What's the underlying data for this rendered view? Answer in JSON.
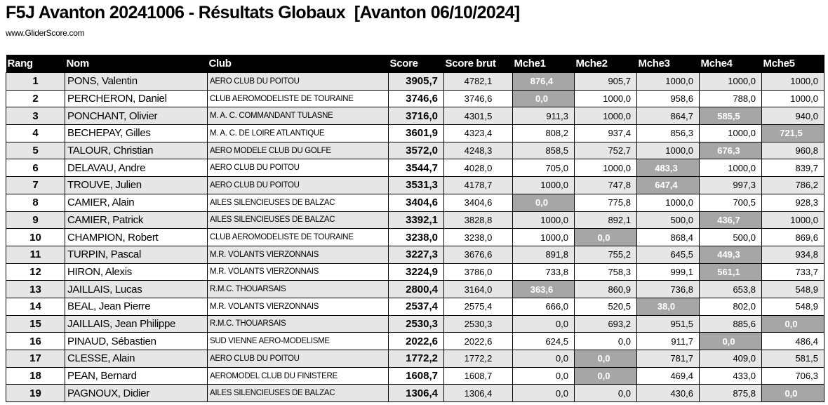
{
  "title": "F5J Avanton 20241006 - Résultats Globaux  [Avanton 06/10/2024]",
  "site": "www.GliderScore.com",
  "colors": {
    "header_bg": "#000000",
    "odd_row_bg": "#e6e6e6",
    "dropped_bg": "#a6a6a6"
  },
  "columns": [
    "Rang",
    "Nom",
    "Club",
    "Score",
    "Score brut",
    "Mche1",
    "Mche2",
    "Mche3",
    "Mche4",
    "Mche5"
  ],
  "rows": [
    {
      "rang": "1",
      "nom": "PONS, Valentin",
      "club": "AERO CLUB DU POITOU",
      "score": "3905,7",
      "brut": "4782,1",
      "mches": [
        "876,4",
        "905,7",
        "1000,0",
        "1000,0",
        "1000,0"
      ],
      "dropped": 0
    },
    {
      "rang": "2",
      "nom": "PERCHERON, Daniel",
      "club": "CLUB AEROMODELISTE DE TOURAINE",
      "score": "3746,6",
      "brut": "3746,6",
      "mches": [
        "0,0",
        "1000,0",
        "958,6",
        "788,0",
        "1000,0"
      ],
      "dropped": 0
    },
    {
      "rang": "3",
      "nom": "PONCHANT, Olivier",
      "club": "M. A. C. COMMANDANT TULASNE",
      "score": "3716,0",
      "brut": "4301,5",
      "mches": [
        "911,3",
        "1000,0",
        "864,7",
        "585,5",
        "940,0"
      ],
      "dropped": 3
    },
    {
      "rang": "4",
      "nom": "BECHEPAY, Gilles",
      "club": "M. A. C. DE LOIRE ATLANTIQUE",
      "score": "3601,9",
      "brut": "4323,4",
      "mches": [
        "808,2",
        "937,4",
        "856,3",
        "1000,0",
        "721,5"
      ],
      "dropped": 4
    },
    {
      "rang": "5",
      "nom": "TALOUR, Christian",
      "club": "AERO MODELE CLUB DU GOLFE",
      "score": "3572,0",
      "brut": "4248,3",
      "mches": [
        "858,5",
        "752,7",
        "1000,0",
        "676,3",
        "960,8"
      ],
      "dropped": 3
    },
    {
      "rang": "6",
      "nom": "DELAVAU, Andre",
      "club": "AERO CLUB DU POITOU",
      "score": "3544,7",
      "brut": "4028,0",
      "mches": [
        "705,0",
        "1000,0",
        "483,3",
        "1000,0",
        "839,7"
      ],
      "dropped": 2
    },
    {
      "rang": "7",
      "nom": "TROUVE, Julien",
      "club": "AERO CLUB DU POITOU",
      "score": "3531,3",
      "brut": "4178,7",
      "mches": [
        "1000,0",
        "747,8",
        "647,4",
        "997,3",
        "786,2"
      ],
      "dropped": 2
    },
    {
      "rang": "8",
      "nom": "CAMIER, Alain",
      "club": "AILES SILENCIEUSES DE BALZAC",
      "score": "3404,6",
      "brut": "3404,6",
      "mches": [
        "0,0",
        "775,8",
        "1000,0",
        "700,5",
        "928,3"
      ],
      "dropped": 0
    },
    {
      "rang": "9",
      "nom": "CAMIER, Patrick",
      "club": "AILES SILENCIEUSES DE BALZAC",
      "score": "3392,1",
      "brut": "3828,8",
      "mches": [
        "1000,0",
        "892,1",
        "500,0",
        "436,7",
        "1000,0"
      ],
      "dropped": 3
    },
    {
      "rang": "10",
      "nom": "CHAMPION, Robert",
      "club": "CLUB AEROMODELISTE DE TOURAINE",
      "score": "3238,0",
      "brut": "3238,0",
      "mches": [
        "1000,0",
        "0,0",
        "868,4",
        "500,0",
        "869,6"
      ],
      "dropped": 1
    },
    {
      "rang": "11",
      "nom": "TURPIN, Pascal",
      "club": "M.R. VOLANTS VIERZONNAIS",
      "score": "3227,3",
      "brut": "3676,6",
      "mches": [
        "891,8",
        "755,2",
        "645,5",
        "449,3",
        "934,8"
      ],
      "dropped": 3
    },
    {
      "rang": "12",
      "nom": "HIRON, Alexis",
      "club": "M.R. VOLANTS VIERZONNAIS",
      "score": "3224,9",
      "brut": "3786,0",
      "mches": [
        "733,8",
        "758,3",
        "999,1",
        "561,1",
        "733,7"
      ],
      "dropped": 3
    },
    {
      "rang": "13",
      "nom": "JAILLAIS, Lucas",
      "club": "R.M.C. THOUARSAIS",
      "score": "2800,4",
      "brut": "3164,0",
      "mches": [
        "363,6",
        "860,9",
        "736,8",
        "653,8",
        "548,9"
      ],
      "dropped": 0
    },
    {
      "rang": "14",
      "nom": "BEAL, Jean Pierre",
      "club": "M.R. VOLANTS VIERZONNAIS",
      "score": "2537,4",
      "brut": "2575,4",
      "mches": [
        "666,0",
        "520,5",
        "38,0",
        "802,0",
        "548,9"
      ],
      "dropped": 2
    },
    {
      "rang": "15",
      "nom": "JAILLAIS, Jean Philippe",
      "club": "R.M.C. THOUARSAIS",
      "score": "2530,3",
      "brut": "2530,3",
      "mches": [
        "0,0",
        "693,2",
        "951,5",
        "885,6",
        "0,0"
      ],
      "dropped": 4
    },
    {
      "rang": "16",
      "nom": "PINAUD, Sébastien",
      "club": "SUD VIENNE AERO-MODELISME",
      "score": "2022,6",
      "brut": "2022,6",
      "mches": [
        "624,5",
        "0,0",
        "911,7",
        "0,0",
        "486,4"
      ],
      "dropped": 3
    },
    {
      "rang": "17",
      "nom": "CLESSE, Alain",
      "club": "AERO CLUB DU POITOU",
      "score": "1772,2",
      "brut": "1772,2",
      "mches": [
        "0,0",
        "0,0",
        "781,7",
        "409,0",
        "581,5"
      ],
      "dropped": 1
    },
    {
      "rang": "18",
      "nom": "PEAN, Bernard",
      "club": "AEROMODEL CLUB DU FINISTERE",
      "score": "1608,7",
      "brut": "1608,7",
      "mches": [
        "0,0",
        "0,0",
        "469,4",
        "433,0",
        "706,3"
      ],
      "dropped": 1
    },
    {
      "rang": "19",
      "nom": "PAGNOUX, Didier",
      "club": "AILES SILENCIEUSES DE BALZAC",
      "score": "1306,4",
      "brut": "1306,4",
      "mches": [
        "0,0",
        "0,0",
        "430,6",
        "875,8",
        "0,0"
      ],
      "dropped": 4
    }
  ]
}
